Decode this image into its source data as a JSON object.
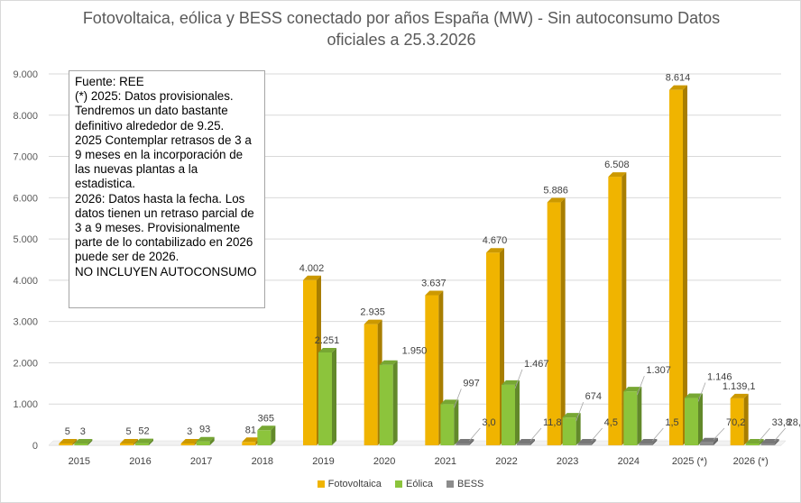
{
  "chart_data": {
    "type": "bar",
    "title": "Fotovoltaica, eólica y BESS conectado por años España (MW) - Sin autoconsumo  Datos\noficiales a 25.3.2026",
    "categories": [
      "2015",
      "2016",
      "2017",
      "2018",
      "2019",
      "2020",
      "2021",
      "2022",
      "2023",
      "2024",
      "2025 (*)",
      "2026 (*)"
    ],
    "series": [
      {
        "name": "Fotovoltaica",
        "color": "#f0b400",
        "values": [
          5,
          5,
          3,
          81,
          4002,
          2935,
          3637,
          4670,
          5886,
          6508,
          8614,
          1139.1
        ],
        "labels": [
          "5",
          "5",
          "3",
          "81",
          "4.002",
          "2.935",
          "3.637",
          "4.670",
          "5.886",
          "6.508",
          "8.614",
          "1.139,1"
        ]
      },
      {
        "name": "Eólica",
        "color": "#8cc43c",
        "values": [
          3,
          52,
          93,
          365,
          2251,
          1950,
          997,
          1467,
          674,
          1307,
          1146,
          33.8
        ],
        "labels": [
          "3",
          "52",
          "93",
          "365",
          "2.251",
          "1.950",
          "997",
          "1.467",
          "674",
          "1.307",
          "1.146",
          "33,8"
        ]
      },
      {
        "name": "BESS",
        "color": "#8c8c8c",
        "values": [
          null,
          null,
          null,
          null,
          null,
          null,
          3.0,
          11.8,
          4.5,
          1.5,
          70.2,
          28.7
        ],
        "labels": [
          "",
          "",
          "",
          "",
          "",
          "",
          "3,0",
          "11,8",
          "4,5",
          "1,5",
          "70,2",
          "28,7"
        ]
      }
    ],
    "ylim": [
      0,
      9000
    ],
    "yticks": [
      "0",
      "1.000",
      "2.000",
      "3.000",
      "4.000",
      "5.000",
      "6.000",
      "7.000",
      "8.000",
      "9.000"
    ],
    "ytick_values": [
      0,
      1000,
      2000,
      3000,
      4000,
      5000,
      6000,
      7000,
      8000,
      9000
    ],
    "grid": true,
    "legend": "bottom"
  },
  "note": {
    "lines": [
      "Fuente: REE",
      "(*) 2025: Datos provisionales. Tendremos un dato bastante definitivo alrededor de 9.25.",
      "2025 Contemplar retrasos de 3 a 9 meses en la incorporación de las nuevas plantas a la estadistica.",
      "2026: Datos hasta la fecha. Los datos tienen un retraso parcial de 3 a 9 meses. Provisionalmente parte de lo contabilizado en 2026 puede ser de 2026.",
      "NO INCLUYEN AUTOCONSUMO"
    ]
  },
  "legend": {
    "items": [
      "Fotovoltaica",
      "Eólica",
      "BESS"
    ]
  }
}
